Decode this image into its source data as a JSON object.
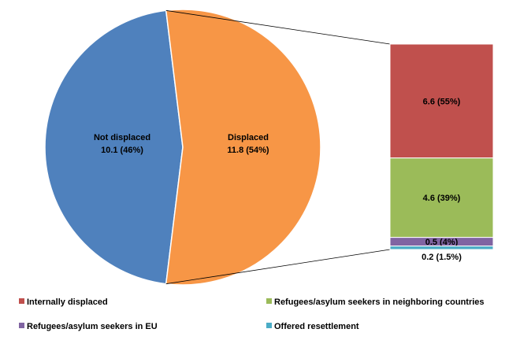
{
  "chart_data": {
    "type": "bar-of-pie",
    "pie": {
      "slices": [
        {
          "name": "Not displaced",
          "value": 10.1,
          "percent_label": "10.1 (46%)",
          "color": "#4F81BD"
        },
        {
          "name": "Displaced",
          "value": 11.8,
          "percent_label": "11.8 (54%)",
          "color": "#F79646"
        }
      ]
    },
    "bar": {
      "exploded_slice": "Displaced",
      "segments": [
        {
          "name": "Internally displaced",
          "value": 6.6,
          "label": "6.6 (55%)",
          "color": "#C0504D"
        },
        {
          "name": "Refugees/asylum seekers in neighboring countries",
          "value": 4.6,
          "label": "4.6 (39%)",
          "color": "#9BBB59"
        },
        {
          "name": "Refugees/asylum seekers in EU",
          "value": 0.5,
          "label": "0.5 (4%)",
          "color": "#8064A2"
        },
        {
          "name": "Offered resettlement",
          "value": 0.2,
          "label": "0.2 (1.5%)",
          "color": "#4BACC6"
        }
      ]
    },
    "legend": {
      "placement": "bottom",
      "entries": [
        {
          "label": "Internally displaced",
          "color": "#C0504D"
        },
        {
          "label": "Refugees/asylum seekers in neighboring countries",
          "color": "#9BBB59"
        },
        {
          "label": "Refugees/asylum seekers in EU",
          "color": "#8064A2"
        },
        {
          "label": "Offered resettlement",
          "color": "#4BACC6"
        }
      ]
    }
  }
}
